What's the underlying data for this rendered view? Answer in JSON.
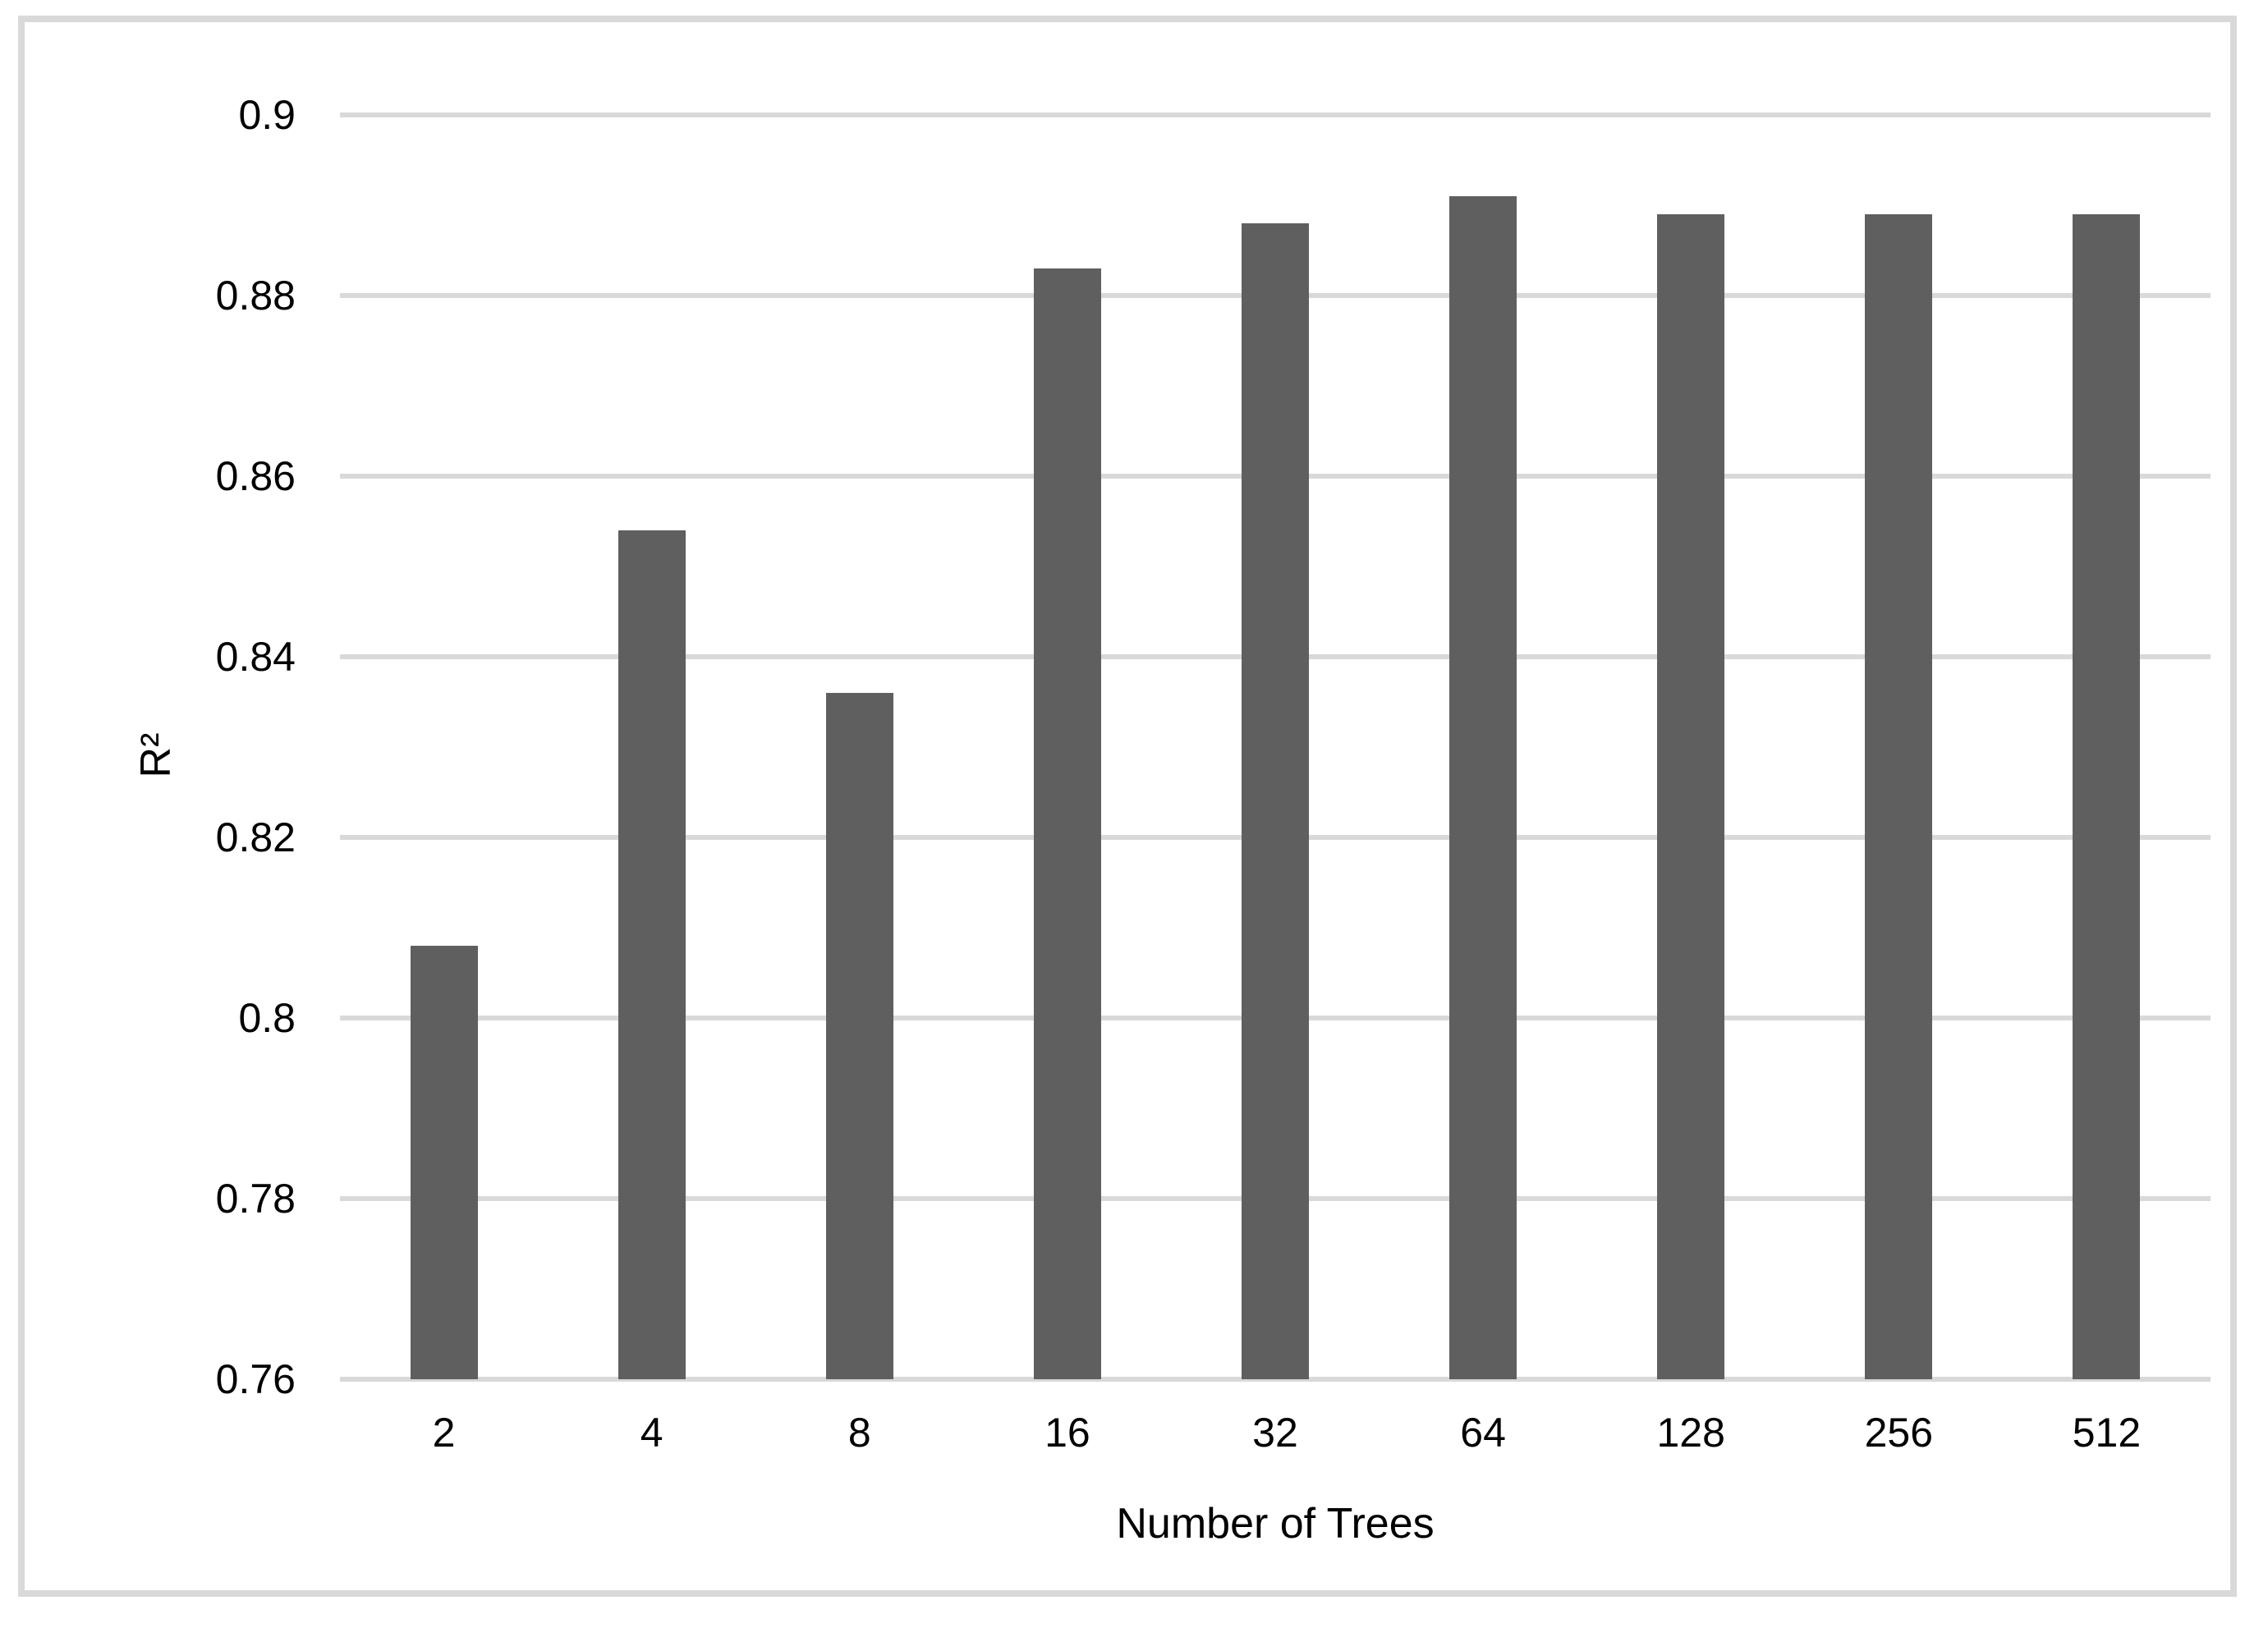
{
  "figure": {
    "frame_color": "#D9D9D9",
    "background_color": "#ffffff",
    "text_color": "#000000"
  },
  "chart_data": {
    "type": "bar",
    "title": "",
    "xlabel": "Number of Trees",
    "ylabel": "R²",
    "categories": [
      "2",
      "4",
      "8",
      "16",
      "32",
      "64",
      "128",
      "256",
      "512"
    ],
    "values": [
      0.808,
      0.854,
      0.836,
      0.883,
      0.888,
      0.891,
      0.889,
      0.889,
      0.889
    ],
    "ylim": [
      0.76,
      0.9
    ],
    "ytick_step": 0.02,
    "ytick_labels": [
      "0.9",
      "0.88",
      "0.86",
      "0.84",
      "0.82",
      "0.8",
      "0.78",
      "0.76"
    ],
    "grid": true,
    "legend": false,
    "bar_color": "#5F5F5F",
    "gridline_color": "#D9D9D9"
  }
}
